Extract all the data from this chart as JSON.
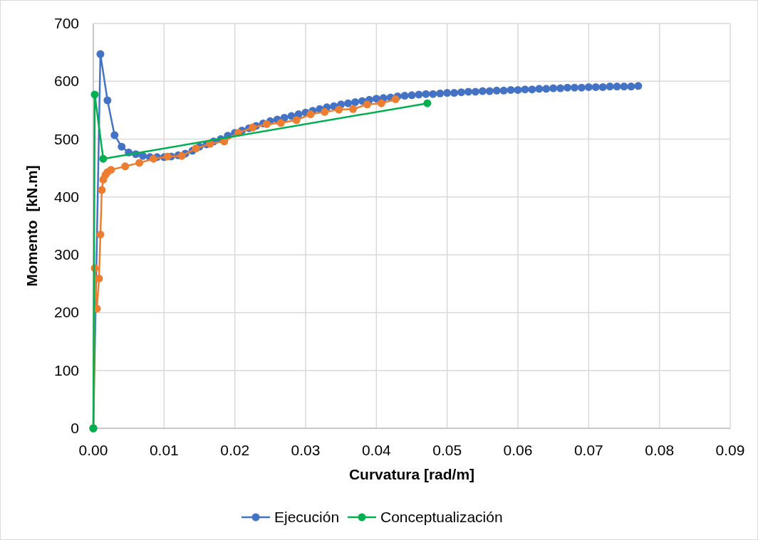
{
  "chart_data": {
    "type": "line",
    "xlabel": "Curvatura [rad/m]",
    "ylabel": "Momento  [kN.m]",
    "xlim": [
      0,
      0.09
    ],
    "xticks": [
      {
        "value": 0,
        "label": "0.00"
      },
      {
        "value": 0.01,
        "label": "0.01"
      },
      {
        "value": 0.02,
        "label": "0.02"
      },
      {
        "value": 0.03,
        "label": "0.03"
      },
      {
        "value": 0.04,
        "label": "0.04"
      },
      {
        "value": 0.05,
        "label": "0.05"
      },
      {
        "value": 0.06,
        "label": "0.06"
      },
      {
        "value": 0.07,
        "label": "0.07"
      },
      {
        "value": 0.08,
        "label": "0.08"
      },
      {
        "value": 0.09,
        "label": "0.09"
      }
    ],
    "ylim": [
      0,
      700
    ],
    "yticks": [
      0,
      100,
      200,
      300,
      400,
      500,
      600,
      700
    ],
    "grid": true,
    "legend": "bottom",
    "marker": "circle",
    "line_style": "solid",
    "series": [
      {
        "name": "Ejecución",
        "color": "#4472c4",
        "x": [
          0,
          0.001,
          0.002,
          0.003,
          0.004,
          0.005,
          0.006,
          0.007,
          0.008,
          0.009,
          0.01,
          0.011,
          0.012,
          0.013,
          0.014,
          0.015,
          0.016,
          0.017,
          0.018,
          0.019,
          0.02,
          0.021,
          0.022,
          0.023,
          0.024,
          0.025,
          0.026,
          0.027,
          0.028,
          0.029,
          0.03,
          0.031,
          0.032,
          0.033,
          0.034,
          0.035,
          0.036,
          0.037,
          0.038,
          0.039,
          0.04,
          0.041,
          0.042,
          0.043,
          0.044,
          0.045,
          0.046,
          0.047,
          0.048,
          0.049,
          0.05,
          0.051,
          0.052,
          0.053,
          0.054,
          0.055,
          0.056,
          0.057,
          0.058,
          0.059,
          0.06,
          0.061,
          0.062,
          0.063,
          0.064,
          0.065,
          0.066,
          0.067,
          0.068,
          0.069,
          0.07,
          0.071,
          0.072,
          0.073,
          0.074,
          0.075,
          0.076,
          0.077
        ],
        "values": [
          0,
          647,
          567,
          507,
          487,
          477,
          474,
          471,
          469,
          469,
          469,
          470,
          472,
          475,
          480,
          487,
          491,
          496,
          500,
          506,
          511,
          515,
          519,
          523,
          527,
          531,
          534,
          537,
          540,
          543,
          546,
          549,
          552,
          555,
          557,
          560,
          562,
          564,
          566,
          568,
          570,
          571,
          572,
          574,
          575,
          576,
          577,
          578,
          578,
          579,
          580,
          580,
          581,
          582,
          582,
          583,
          583,
          584,
          584,
          585,
          585,
          586,
          586,
          587,
          587,
          588,
          588,
          589,
          589,
          589,
          590,
          590,
          590,
          591,
          591,
          591,
          591,
          592
        ]
      },
      {
        "color": "#ed7d31",
        "x": [
          0,
          0.0002,
          0.0005,
          0.0008,
          0.001,
          0.0012,
          0.0014,
          0.0017,
          0.002,
          0.0025,
          0.0045,
          0.0065,
          0.0085,
          0.0105,
          0.0125,
          0.0145,
          0.0165,
          0.0185,
          0.0205,
          0.0225,
          0.0245,
          0.0265,
          0.0287,
          0.0307,
          0.0327,
          0.0347,
          0.0367,
          0.0387,
          0.0407,
          0.0427
        ],
        "values": [
          0,
          277,
          207,
          259,
          335,
          412,
          430,
          438,
          443,
          447,
          453,
          459,
          466,
          470,
          471,
          484,
          492,
          496,
          511,
          520,
          526,
          528,
          533,
          543,
          547,
          551,
          552,
          560,
          562,
          569
        ]
      },
      {
        "name": "Conceptualización",
        "color": "#00b050",
        "x": [
          0,
          0.0002,
          0.0014,
          0.0472
        ],
        "values": [
          0,
          577,
          466,
          562
        ]
      }
    ]
  }
}
